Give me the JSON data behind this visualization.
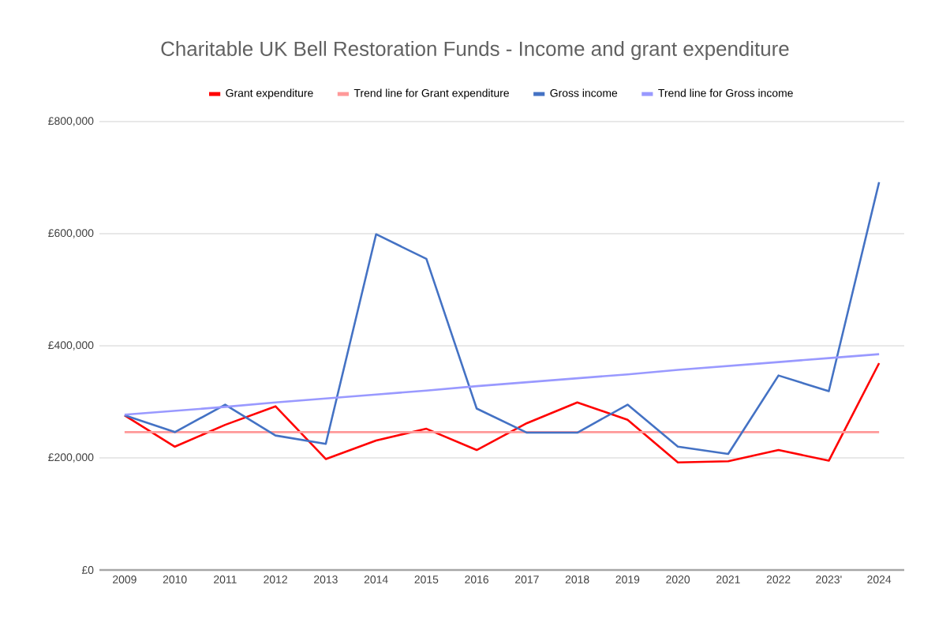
{
  "chart_data": {
    "type": "line",
    "title": "Charitable UK Bell Restoration Funds - Income and grant expenditure",
    "categories": [
      "2009",
      "2010",
      "2011",
      "2012",
      "2013",
      "2014",
      "2015",
      "2016",
      "2017",
      "2018",
      "2019",
      "2020",
      "2021",
      "2022",
      "2023'",
      "2024"
    ],
    "series": [
      {
        "name": "Grant expenditure",
        "color": "#ff0000",
        "values": [
          276000,
          220000,
          259000,
          292000,
          198000,
          231000,
          252000,
          214000,
          262000,
          299000,
          268000,
          192000,
          194000,
          214000,
          195000,
          369000
        ]
      },
      {
        "name": "Trend line for Grant expenditure",
        "color": "#ff9999",
        "values": [
          246000,
          246000,
          246000,
          246000,
          246000,
          246000,
          246000,
          246000,
          246000,
          246000,
          246000,
          246000,
          246000,
          246000,
          246000,
          246000
        ]
      },
      {
        "name": "Gross income",
        "color": "#4472c4",
        "values": [
          276000,
          246000,
          295000,
          240000,
          225000,
          599000,
          555000,
          288000,
          245000,
          245000,
          295000,
          220000,
          207000,
          347000,
          319000,
          692000
        ]
      },
      {
        "name": "Trend line for Gross income",
        "color": "#9999ff",
        "values": [
          277000,
          284000,
          291000,
          299000,
          306000,
          313000,
          320000,
          328000,
          335000,
          342000,
          349000,
          357000,
          364000,
          371000,
          378000,
          385000
        ]
      }
    ],
    "ylim": [
      0,
      800000
    ],
    "yticks": [
      {
        "value": 0,
        "label": "£0"
      },
      {
        "value": 200000,
        "label": "£200,000"
      },
      {
        "value": 400000,
        "label": "£400,000"
      },
      {
        "value": 600000,
        "label": "£600,000"
      },
      {
        "value": 800000,
        "label": "£800,000"
      }
    ],
    "grid": "y",
    "legend": "top",
    "marker": "none",
    "line_style": "solid"
  }
}
